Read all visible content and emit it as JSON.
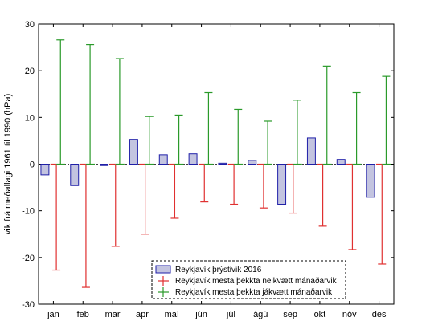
{
  "chart_data": {
    "type": "bar",
    "ylabel": "vik frá meðallagi 1961 til 1990 (hPa)",
    "ylim": [
      -30,
      30
    ],
    "yticks": [
      -30,
      -20,
      -10,
      0,
      10,
      20,
      30
    ],
    "categories": [
      "jan",
      "feb",
      "mar",
      "apr",
      "maí",
      "jún",
      "júl",
      "ágú",
      "sep",
      "okt",
      "nóv",
      "des"
    ],
    "series": [
      {
        "name": "Reykjavík þrýstivik 2016",
        "kind": "bar",
        "color": "#c3c4e0",
        "stroke": "#1f1fa8",
        "values": [
          -2.3,
          -4.6,
          -0.3,
          5.3,
          2.0,
          2.2,
          0.2,
          0.8,
          -8.6,
          5.6,
          1.0,
          -7.1
        ]
      },
      {
        "name": "Reykjavík mesta þekkta neikvætt mánaðarvik",
        "kind": "whisker",
        "color": "#e03030",
        "values": [
          -22.7,
          -26.4,
          -17.6,
          -15.0,
          -11.6,
          -8.1,
          -8.6,
          -9.4,
          -10.5,
          -13.3,
          -18.3,
          -21.4
        ]
      },
      {
        "name": "Reykjavík mesta þekkta jákvætt mánaðarvik",
        "kind": "whisker",
        "color": "#2a9a2a",
        "values": [
          26.6,
          25.6,
          22.6,
          10.2,
          10.5,
          15.3,
          11.7,
          9.2,
          13.7,
          21.0,
          15.3,
          18.8
        ]
      }
    ],
    "legend": {
      "position": "bottom-right"
    },
    "grid": false
  }
}
